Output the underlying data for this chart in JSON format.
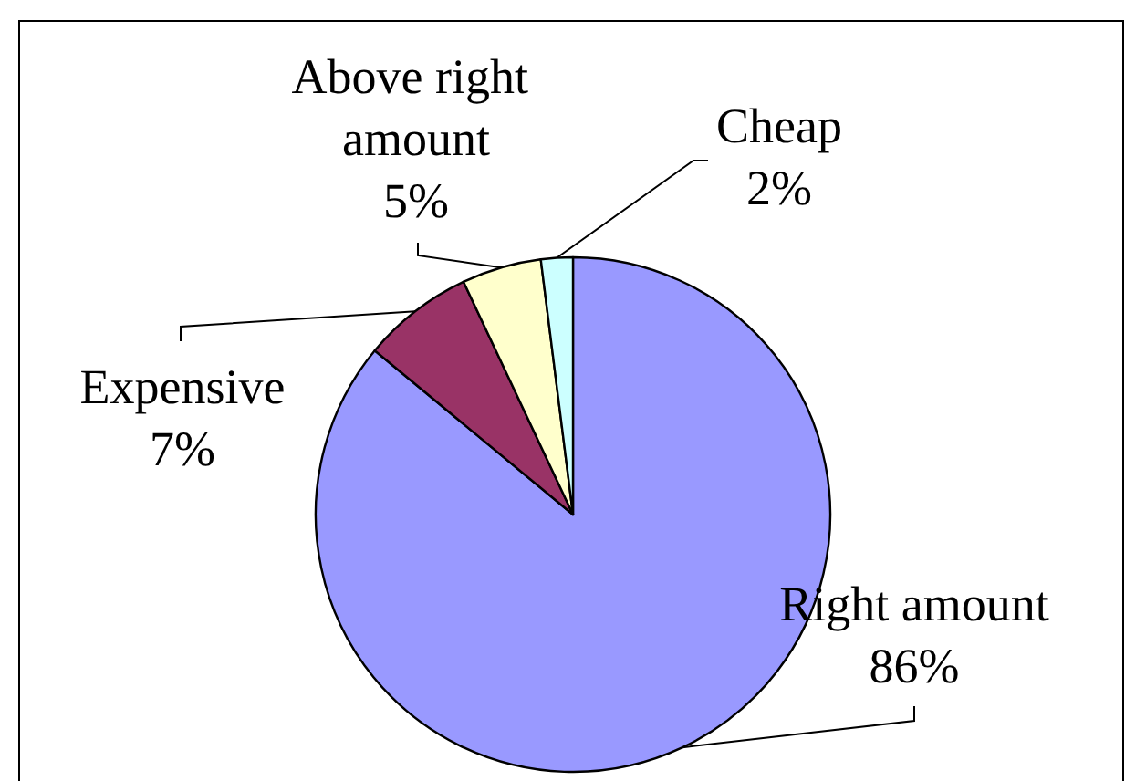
{
  "chart_data": {
    "type": "pie",
    "categories": [
      "Right amount",
      "Expensive",
      "Above right amount",
      "Cheap"
    ],
    "values": [
      86,
      7,
      5,
      2
    ],
    "value_labels": [
      "86%",
      "7%",
      "5%",
      "2%"
    ],
    "colors": [
      "#9999ff",
      "#993366",
      "#ffffcc",
      "#ccffff"
    ],
    "legend": false
  }
}
